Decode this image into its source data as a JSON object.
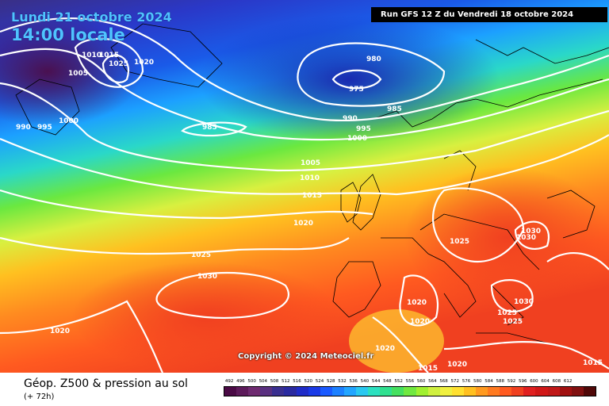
{
  "header": {
    "date_line1": "Lundi 21 octobre 2024",
    "date_line2": "14:00 locale",
    "run_info": "Run GFS 12 Z du Vendredi 18 octobre 2024"
  },
  "map": {
    "copyright": "Copyright © 2024 Meteociel.fr",
    "isobar_labels": [
      "1010",
      "1015",
      "1025",
      "1020",
      "1005",
      "990",
      "995",
      "1000",
      "985",
      "980",
      "975",
      "985",
      "990",
      "995",
      "1000",
      "1005",
      "1010",
      "1015",
      "1020",
      "1025",
      "1030",
      "1020",
      "1025",
      "1030",
      "1030",
      "1030",
      "1025",
      "1025",
      "1020",
      "1020",
      "1020",
      "1015",
      "1020",
      "1015"
    ]
  },
  "footer": {
    "title": "Géop. Z500 & pression au sol",
    "subtitle": "(+ 72h)"
  },
  "scale": {
    "labels": [
      "492",
      "496",
      "500",
      "504",
      "508",
      "512",
      "516",
      "520",
      "524",
      "528",
      "532",
      "536",
      "540",
      "544",
      "548",
      "552",
      "556",
      "560",
      "564",
      "568",
      "572",
      "576",
      "580",
      "584",
      "588",
      "592",
      "596",
      "600",
      "604",
      "608",
      "612"
    ],
    "colors": [
      "#4a0a45",
      "#5c1a5a",
      "#6e2a70",
      "#5a3080",
      "#3a2f90",
      "#2a2aa0",
      "#1f2cc8",
      "#1a3ae6",
      "#1a5aff",
      "#1c80ff",
      "#22a5ff",
      "#2ac8f0",
      "#2ce0c0",
      "#30e090",
      "#45e060",
      "#70e840",
      "#a0f030",
      "#d0f040",
      "#f0f040",
      "#ffe030",
      "#ffc020",
      "#ff9a20",
      "#ff7a20",
      "#ff5a20",
      "#f04020",
      "#e02020",
      "#d01818",
      "#c01818",
      "#a01010",
      "#801010",
      "#500808"
    ]
  }
}
